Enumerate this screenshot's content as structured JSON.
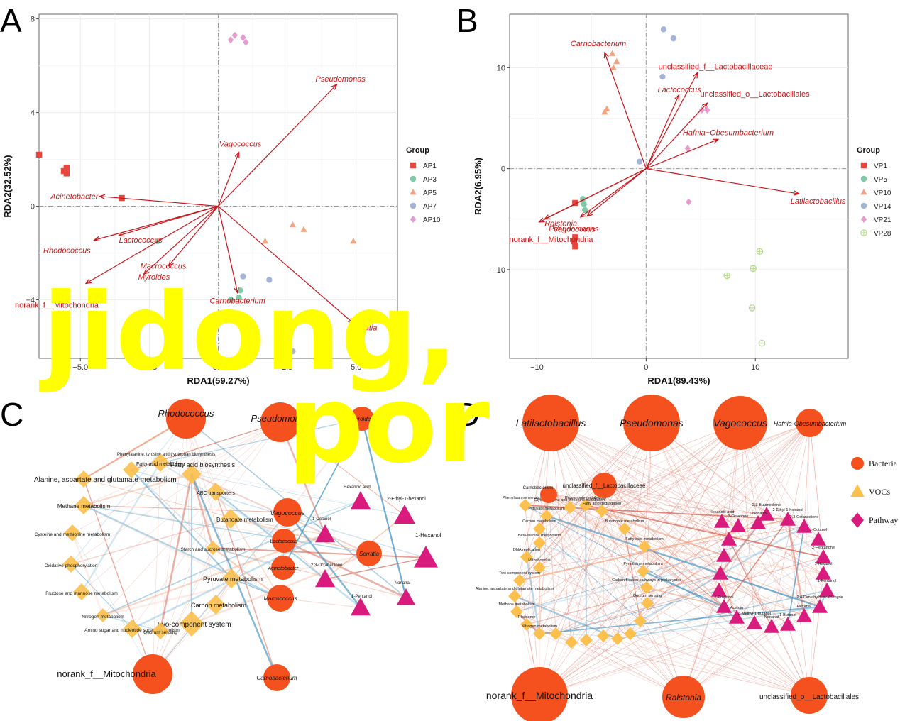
{
  "overlay": {
    "line1": "jidong,",
    "line2": "por"
  },
  "panels": {
    "A": {
      "letter": "A",
      "chart_data": {
        "type": "scatter",
        "xlabel": "RDA1(59.27%)",
        "ylabel": "RDA2(32.52%)",
        "xlim": [
          -6.5,
          6.5
        ],
        "ylim": [
          -6.5,
          8.2
        ],
        "xticks": [
          -5.0,
          -2.5,
          0.0,
          2.5,
          5.0
        ],
        "xtick_labels": [
          "−5.0",
          "−2.5",
          "0.0",
          "2.5",
          "5.0"
        ],
        "yticks": [
          -4,
          0,
          4,
          8
        ],
        "ytick_labels": [
          "−4",
          "0",
          "4",
          "8"
        ],
        "grid": true,
        "legend_title": "Group",
        "legend_position": "right",
        "series": [
          {
            "name": "AP1",
            "shape": "square",
            "color": "#e8453c",
            "points": [
              [
                -6.5,
                2.2
              ],
              [
                -5.6,
                1.5
              ],
              [
                -5.5,
                1.4
              ],
              [
                -5.5,
                1.65
              ],
              [
                -3.5,
                0.35
              ]
            ]
          },
          {
            "name": "AP3",
            "shape": "circle",
            "color": "#7fc9a8",
            "points": [
              [
                -2.2,
                -1.5
              ],
              [
                0.45,
                -4.0
              ],
              [
                0.75,
                -3.9
              ],
              [
                0.8,
                -3.6
              ]
            ]
          },
          {
            "name": "AP5",
            "shape": "triangle",
            "color": "#f2a582",
            "points": [
              [
                1.7,
                -1.5
              ],
              [
                2.7,
                -0.8
              ],
              [
                3.1,
                -1.0
              ],
              [
                4.9,
                -1.5
              ]
            ]
          },
          {
            "name": "AP7",
            "shape": "circle",
            "color": "#a5b4d6",
            "points": [
              [
                0.9,
                -3.0
              ],
              [
                1.85,
                -3.15
              ],
              [
                3.5,
                -4.9
              ],
              [
                2.7,
                -6.2
              ]
            ]
          },
          {
            "name": "AP10",
            "shape": "diamond",
            "color": "#e69ccf",
            "points": [
              [
                0.45,
                7.1
              ],
              [
                0.6,
                7.3
              ],
              [
                0.9,
                7.2
              ],
              [
                1.0,
                7.0
              ]
            ]
          }
        ],
        "vectors": [
          {
            "label": "Pseudomonas",
            "x": 4.3,
            "y": 5.2
          },
          {
            "label": "Vagococcus",
            "x": 0.75,
            "y": 2.3
          },
          {
            "label": "Acinetobacter",
            "x": -4.3,
            "y": 0.42
          },
          {
            "label": "Lactococcus",
            "x": -3.6,
            "y": -1.25
          },
          {
            "label": "Rhodococcus",
            "x": -4.5,
            "y": -1.45
          },
          {
            "label": "Myroides",
            "x": -2.7,
            "y": -2.9
          },
          {
            "label": "Macrococcus",
            "x": -1.8,
            "y": -2.55
          },
          {
            "label": "norank_f__Mitochondria",
            "x": -4.8,
            "y": -3.3
          },
          {
            "label": "Carnobacterium",
            "x": 0.7,
            "y": -3.7
          },
          {
            "label": "Serratia",
            "x": 4.9,
            "y": -5.0
          }
        ]
      }
    },
    "B": {
      "letter": "B",
      "chart_data": {
        "type": "scatter",
        "xlabel": "RDA1(89.43%)",
        "ylabel": "RDA2(6.95%)",
        "xlim": [
          -12.5,
          18.5
        ],
        "ylim": [
          -18.8,
          15.3
        ],
        "xticks": [
          -10,
          0,
          10
        ],
        "xtick_labels": [
          "−10",
          "0",
          "10"
        ],
        "yticks": [
          -10,
          0,
          10
        ],
        "ytick_labels": [
          "−10",
          "0",
          "10"
        ],
        "grid": true,
        "legend_title": "Group",
        "legend_position": "right",
        "series": [
          {
            "name": "VP1",
            "shape": "square",
            "color": "#e8453c",
            "points": [
              [
                -6.5,
                -3.4
              ],
              [
                -6.5,
                -6.8
              ],
              [
                -6.6,
                -7.2
              ],
              [
                -6.5,
                -7.7
              ]
            ]
          },
          {
            "name": "VP5",
            "shape": "circle",
            "color": "#7fc9a8",
            "points": [
              [
                -5.8,
                -3.0
              ],
              [
                -5.7,
                -3.5
              ],
              [
                -5.6,
                -4.1
              ]
            ]
          },
          {
            "name": "VP10",
            "shape": "triangle",
            "color": "#f2a582",
            "points": [
              [
                -3.6,
                5.9
              ],
              [
                -3.8,
                5.6
              ],
              [
                -3.0,
                10.0
              ],
              [
                -2.7,
                10.6
              ],
              [
                -3.1,
                11.4
              ]
            ]
          },
          {
            "name": "VP14",
            "shape": "circle",
            "color": "#a5b4d6",
            "points": [
              [
                1.6,
                13.8
              ],
              [
                2.5,
                12.9
              ],
              [
                1.5,
                9.1
              ],
              [
                -0.6,
                0.7
              ]
            ]
          },
          {
            "name": "VP21",
            "shape": "diamond",
            "color": "#e69ccf",
            "points": [
              [
                5.1,
                5.8
              ],
              [
                5.6,
                5.8
              ],
              [
                3.8,
                2.0
              ],
              [
                3.9,
                -3.3
              ]
            ]
          },
          {
            "name": "VP28",
            "shape": "circle-cross",
            "color": "#b5d98a",
            "points": [
              [
                10.4,
                -8.2
              ],
              [
                7.4,
                -10.6
              ],
              [
                9.8,
                -9.9
              ],
              [
                9.7,
                -13.8
              ],
              [
                10.6,
                -17.3
              ]
            ]
          }
        ],
        "vectors": [
          {
            "label": "Carnobacterium",
            "x": -3.8,
            "y": 11.5
          },
          {
            "label": "unclassified_f__Lactobacillaceae",
            "x": 4.7,
            "y": 9.5
          },
          {
            "label": "Lactococcus",
            "x": 3.0,
            "y": 7.3
          },
          {
            "label": "unclassified_o__Lactobacillales",
            "x": 5.6,
            "y": 6.5
          },
          {
            "label": "Hafnia−Obesumbacterium",
            "x": 6.6,
            "y": 2.9
          },
          {
            "label": "Latilactobacillus",
            "x": 14.0,
            "y": -2.5
          },
          {
            "label": "Ralstonia",
            "x": -9.3,
            "y": -5.0
          },
          {
            "label": "norank_f__Mitochondria",
            "x": -9.8,
            "y": -5.3
          },
          {
            "label": "Pseudomonas",
            "x": -6.0,
            "y": -4.8
          },
          {
            "label": "Vagococcus",
            "x": -5.4,
            "y": -4.7
          }
        ]
      }
    },
    "C": {
      "letter": "C",
      "bacteria": [
        {
          "label": "Rhodococcus",
          "italic": true,
          "size": "L"
        },
        {
          "label": "Pseudomonas",
          "italic": true,
          "size": "L"
        },
        {
          "label": "Myroides",
          "italic": true,
          "size": "S"
        },
        {
          "label": "Vagococcus",
          "italic": true,
          "size": "S"
        },
        {
          "label": "Lactococcus",
          "italic": true,
          "size": "S"
        },
        {
          "label": "Acinetobacter",
          "italic": true,
          "size": "S"
        },
        {
          "label": "Macrococcus",
          "italic": true,
          "size": "S"
        },
        {
          "label": "Serratia",
          "italic": true,
          "size": "S"
        },
        {
          "label": "Carnobacterium",
          "italic": true,
          "size": "S"
        },
        {
          "label": "norank_f__Mitochondria",
          "italic": false,
          "size": "L"
        }
      ],
      "pathways": [
        "Alanine, aspartate and glutamate metabolism",
        "Phenylalanine, tyrosine and tryptophan biosynthesis",
        "Fatty acid metabolism",
        "Fatty acid biosynthesis",
        "ABC transporters",
        "Methane metabolism",
        "Butanoate metabolism",
        "Cysteine and methionine metabolism",
        "Starch and sucrose metabolism",
        "Oxidative phosphorylation",
        "Pyruvate metabolism",
        "Fructose and mannose metabolism",
        "Carbon metabolism",
        "Nitrogen metabolism",
        "Two-component system",
        "Amino sugar and nucleotide sugar metabolism",
        "Quorum sensing"
      ],
      "vocs": [
        "Hexanoic acid",
        "2-Ethyl-1-hexanol",
        "1-Octanol",
        "1-Hexanol",
        "2,3-Octanedione",
        "1-Pentanol",
        "Nonanal"
      ]
    },
    "D": {
      "letter": "D",
      "legend": [
        {
          "label": "Bacteria",
          "shape": "circle",
          "color": "#f4511e"
        },
        {
          "label": "VOCs",
          "shape": "triangle",
          "color": "#fbc04d"
        },
        {
          "label": "Pathway",
          "shape": "diamond",
          "color": "#d81b7c"
        }
      ],
      "bacteria": [
        {
          "label": "Latilactobacillus",
          "italic": true
        },
        {
          "label": "Pseudomonas",
          "italic": true
        },
        {
          "label": "Vagococcus",
          "italic": true
        },
        {
          "label": "Hafnia-Obesumbacterium",
          "italic": true
        },
        {
          "label": "unclassified_f__Lactobacillaceae",
          "italic": false
        },
        {
          "label": "Carnobacterium",
          "italic": false
        },
        {
          "label": "norank_f__Mitochondria",
          "italic": false
        },
        {
          "label": "Ralstonia",
          "italic": true
        },
        {
          "label": "unclassified_o__Lactobacillales",
          "italic": false
        }
      ],
      "pathways": [
        "Phenylalanine metabolism",
        "Pyruvate metabolism",
        "Glycine, serine and threonine metabolism",
        "Propanoate metabolism",
        "Fatty acid degradation",
        "Carbon metabolism",
        "Butanoate metabolism",
        "Beta-alanine metabolism",
        "Fatty acid metabolism",
        "DNA replication",
        "Mitochondria",
        "Pyrimidine metabolism",
        "Two-component system",
        "Carbon fixation pathways in prokaryotes",
        "Alanine, aspartate and glutamate metabolism",
        "Methane metabolism",
        "Ribosome",
        "Nitrogen metabolism",
        "Quorum sensing"
      ],
      "vocs": [
        "Hexanoic acid",
        "3-Octanone",
        "1-Nonanol",
        "2,3-Butanedione",
        "2-Ethyl-1-hexanol",
        "2,3-Octanedione",
        "1-Octanol",
        "2-Heptanone",
        "1-Hexanol",
        "1-Pentanol",
        "2,4-Dimethylbenzaldehyde",
        "Hexanal",
        "1-Butanol",
        "Nonanal",
        "3-Methyl-1-butanol",
        "Acetoin",
        "1-Propanol"
      ]
    }
  }
}
